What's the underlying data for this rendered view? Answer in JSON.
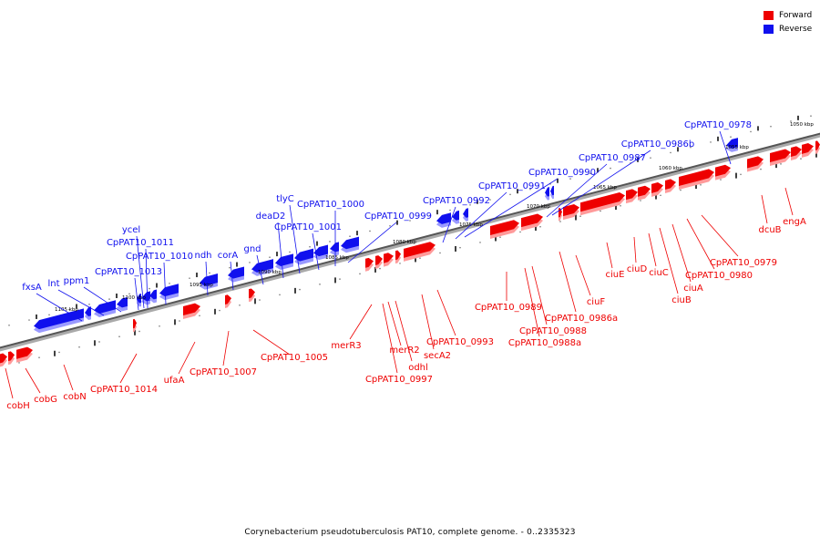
{
  "legend": {
    "forward_label": "Forward",
    "reverse_label": "Reverse",
    "forward_color": "#ee0000",
    "reverse_color": "#1010ee"
  },
  "caption": "Corynebacterium pseudotuberculosis PAT10, complete genome. - 0..2335323",
  "genome": {
    "scale_direction": "decreasing-left-to-right",
    "kbp_ticks": [
      "1050 kbp",
      "1055 kbp",
      "1060 kbp",
      "1065 kbp",
      "1070 kbp",
      "1075 kbp",
      "1080 kbp",
      "1085 kbp",
      "1090 kbp",
      "1095 kbp",
      "1100 kbp",
      "1105 kbp"
    ]
  },
  "genes_reverse": [
    {
      "name": "fxsA",
      "strand": "reverse"
    },
    {
      "name": "lnt",
      "strand": "reverse"
    },
    {
      "name": "ppm1",
      "strand": "reverse"
    },
    {
      "name": "CpPAT10_1013",
      "strand": "reverse"
    },
    {
      "name": "ycel",
      "strand": "reverse"
    },
    {
      "name": "CpPAT10_1011",
      "strand": "reverse"
    },
    {
      "name": "CpPAT10_1010",
      "strand": "reverse"
    },
    {
      "name": "ndh",
      "strand": "reverse"
    },
    {
      "name": "corA",
      "strand": "reverse"
    },
    {
      "name": "gnd",
      "strand": "reverse"
    },
    {
      "name": "deaD2",
      "strand": "reverse"
    },
    {
      "name": "tlyC",
      "strand": "reverse"
    },
    {
      "name": "CpPAT10_1001",
      "strand": "reverse"
    },
    {
      "name": "CpPAT10_1000",
      "strand": "reverse"
    },
    {
      "name": "CpPAT10_0999",
      "strand": "reverse"
    },
    {
      "name": "CpPAT10_0992",
      "strand": "reverse"
    },
    {
      "name": "CpPAT10_0991",
      "strand": "reverse"
    },
    {
      "name": "CpPAT10_0990",
      "strand": "reverse"
    },
    {
      "name": "CpPAT10_0987",
      "strand": "reverse"
    },
    {
      "name": "CpPAT10_0986b",
      "strand": "reverse"
    },
    {
      "name": "CpPAT10_0978",
      "strand": "reverse"
    }
  ],
  "genes_forward": [
    {
      "name": "cobH",
      "strand": "forward"
    },
    {
      "name": "cobG",
      "strand": "forward"
    },
    {
      "name": "cobN",
      "strand": "forward"
    },
    {
      "name": "CpPAT10_1014",
      "strand": "forward"
    },
    {
      "name": "ufaA",
      "strand": "forward"
    },
    {
      "name": "CpPAT10_1007",
      "strand": "forward"
    },
    {
      "name": "CpPAT10_1005",
      "strand": "forward"
    },
    {
      "name": "merR3",
      "strand": "forward"
    },
    {
      "name": "CpPAT10_0997",
      "strand": "forward"
    },
    {
      "name": "merR2",
      "strand": "forward"
    },
    {
      "name": "odhl",
      "strand": "forward"
    },
    {
      "name": "secA2",
      "strand": "forward"
    },
    {
      "name": "CpPAT10_0993",
      "strand": "forward"
    },
    {
      "name": "CpPAT10_0989",
      "strand": "forward"
    },
    {
      "name": "CpPAT10_0988",
      "strand": "forward"
    },
    {
      "name": "CpPAT10_0988a",
      "strand": "forward"
    },
    {
      "name": "CpPAT10_0986a",
      "strand": "forward"
    },
    {
      "name": "ciuF",
      "strand": "forward"
    },
    {
      "name": "ciuE",
      "strand": "forward"
    },
    {
      "name": "ciuD",
      "strand": "forward"
    },
    {
      "name": "ciuC",
      "strand": "forward"
    },
    {
      "name": "ciuB",
      "strand": "forward"
    },
    {
      "name": "ciuA",
      "strand": "forward"
    },
    {
      "name": "CpPAT10_0980",
      "strand": "forward"
    },
    {
      "name": "CpPAT10_0979",
      "strand": "forward"
    },
    {
      "name": "dcuB",
      "strand": "forward"
    },
    {
      "name": "engA",
      "strand": "forward"
    }
  ]
}
